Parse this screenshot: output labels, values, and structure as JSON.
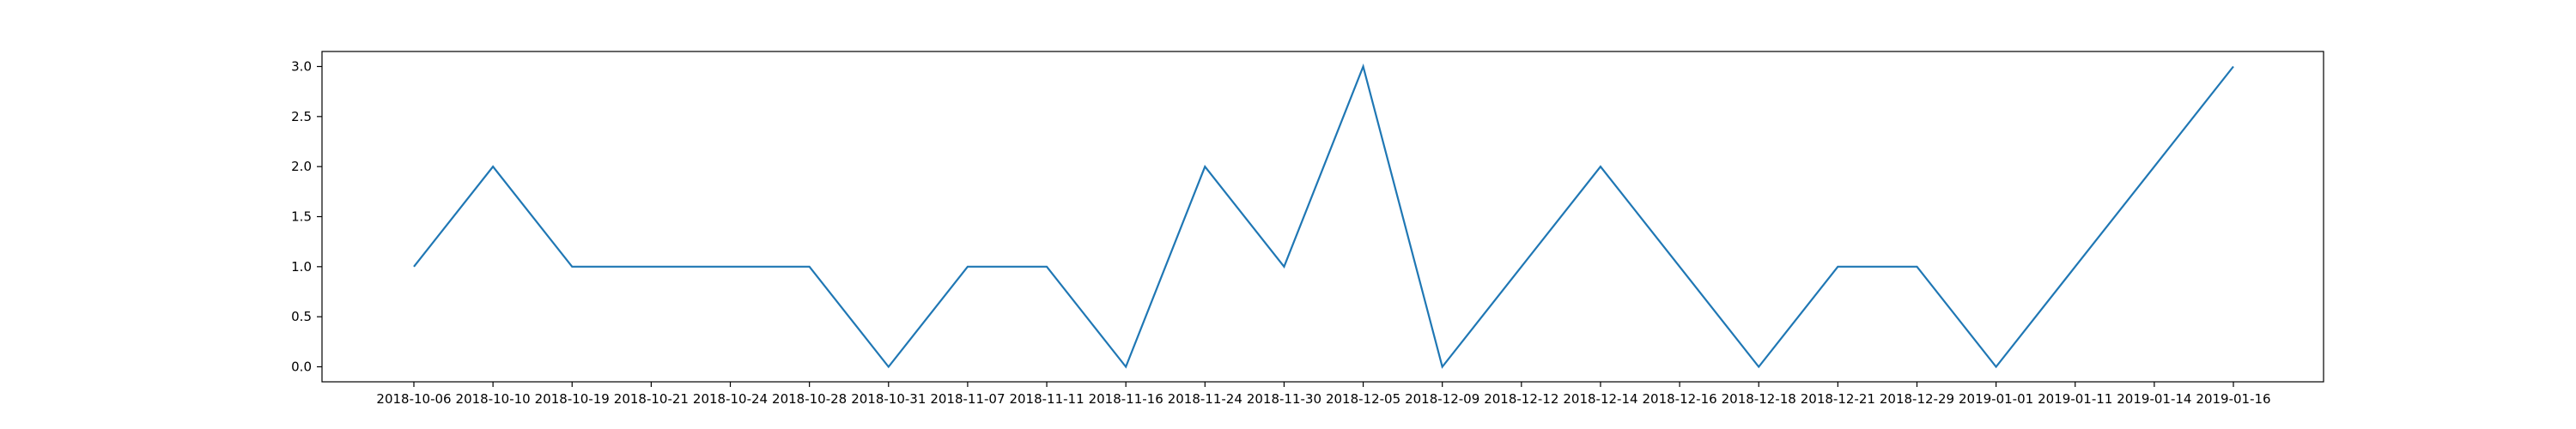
{
  "chart_data": {
    "type": "line",
    "title": "",
    "xlabel": "",
    "ylabel": "",
    "grid": false,
    "legend": "none",
    "categories": [
      "2018-10-06",
      "2018-10-10",
      "2018-10-19",
      "2018-10-21",
      "2018-10-24",
      "2018-10-28",
      "2018-10-31",
      "2018-11-07",
      "2018-11-11",
      "2018-11-16",
      "2018-11-24",
      "2018-11-30",
      "2018-12-05",
      "2018-12-09",
      "2018-12-12",
      "2018-12-14",
      "2018-12-16",
      "2018-12-18",
      "2018-12-21",
      "2018-12-29",
      "2019-01-01",
      "2019-01-11",
      "2019-01-14",
      "2019-01-16"
    ],
    "values": [
      1,
      2,
      1,
      1,
      1,
      1,
      0,
      1,
      1,
      0,
      2,
      1,
      3,
      0,
      1,
      2,
      1,
      0,
      1,
      1,
      0,
      1,
      2,
      3
    ],
    "y_ticks": [
      "0.0",
      "0.5",
      "1.0",
      "1.5",
      "2.0",
      "2.5",
      "3.0"
    ],
    "ylim": [
      -0.15,
      3.15
    ],
    "line_color": "#1f77b4"
  }
}
